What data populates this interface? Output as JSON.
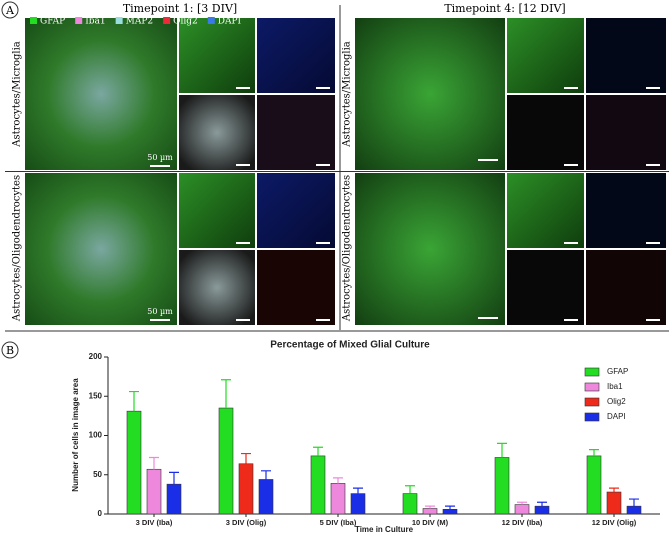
{
  "panel_labels": [
    "A",
    "B"
  ],
  "panel_a": {
    "titles": [
      "Timepoint 1: [3 DIV]",
      "Timepoint 4: [12 DIV]"
    ],
    "channels": [
      "GFAP",
      "Iba1",
      "MAP2",
      "Olig2",
      "DAPI"
    ],
    "row_labels": [
      "Astrocytes/Microglia",
      "Astrocytes/Oligodendrocytes"
    ],
    "scale_labels": [
      "50 µm",
      "50 µm"
    ]
  },
  "chart_data": {
    "type": "bar",
    "title": "Percentage of Mixed Glial Culture",
    "x_label": "Time in Culture",
    "y_label": "Number of cells in image area",
    "categories": [
      "3 DIV (Iba)",
      "3 DIV (Olig)",
      "5 DIV (Iba)",
      "10 DIV (M)",
      "12 DIV (Iba)",
      "12 DIV (Olig)"
    ],
    "series": [
      {
        "name": "GFAP",
        "color": "#22dd22",
        "values": [
          131,
          135,
          74,
          26,
          72,
          74
        ],
        "errors": [
          25,
          36,
          11,
          10,
          18,
          8
        ]
      },
      {
        "name": "Iba1",
        "color": "#ee88dd",
        "values": [
          57,
          null,
          39,
          7,
          12,
          null
        ],
        "errors": [
          15,
          null,
          7,
          3,
          3,
          null
        ]
      },
      {
        "name": "Olig2",
        "color": "#ee2a1a",
        "values": [
          null,
          64,
          null,
          null,
          null,
          28
        ],
        "errors": [
          null,
          13,
          null,
          null,
          null,
          5
        ]
      },
      {
        "name": "DAPI",
        "color": "#1a2ee8",
        "values": [
          38,
          44,
          26,
          6,
          10,
          10
        ],
        "errors": [
          15,
          11,
          7,
          4,
          5,
          9
        ]
      }
    ],
    "ylim": [
      0,
      200
    ],
    "yticks": [
      0,
      50,
      100,
      150,
      200
    ],
    "grid": false,
    "legend": "top-right"
  }
}
